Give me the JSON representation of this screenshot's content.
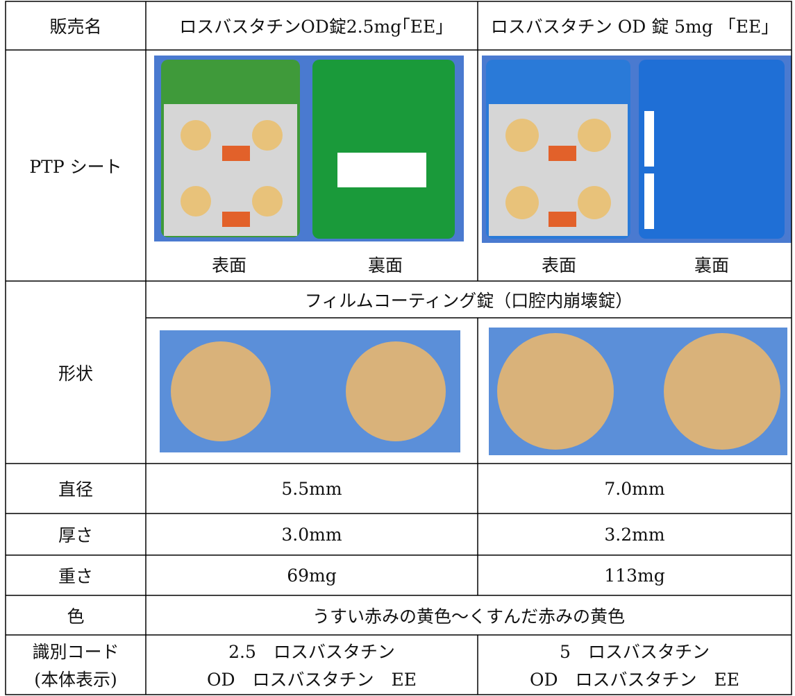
{
  "table": {
    "header": [
      "販売名",
      "ロスバスタチンOD錠2.5mg｢EE｣",
      "ロスバスタチン OD 錠 5mg 「EE」"
    ],
    "ptp": {
      "label": "PTP シート",
      "captions": [
        "表面",
        "裏面",
        "表面",
        "裏面"
      ]
    },
    "shape": {
      "label": "形状",
      "description": "フィルムコーティング錠（口腔内崩壊錠）"
    },
    "rows": [
      [
        "直径",
        "5.5mm",
        "7.0mm"
      ],
      [
        "厚さ",
        "3.0mm",
        "3.2mm"
      ],
      [
        "重さ",
        "69mg",
        "113mg"
      ]
    ],
    "color": {
      "label": "色",
      "value": "うすい赤みの黄色～くすんだ赤みの黄色"
    },
    "code": {
      "label": [
        "識別コード",
        "(本体表示)"
      ],
      "values": [
        [
          "2.5　ロスバスタチン",
          "OD　ロスバスタチン　EE"
        ],
        [
          "5　ロスバスタチン",
          "OD　ロスバスタチン　EE"
        ]
      ]
    }
  }
}
